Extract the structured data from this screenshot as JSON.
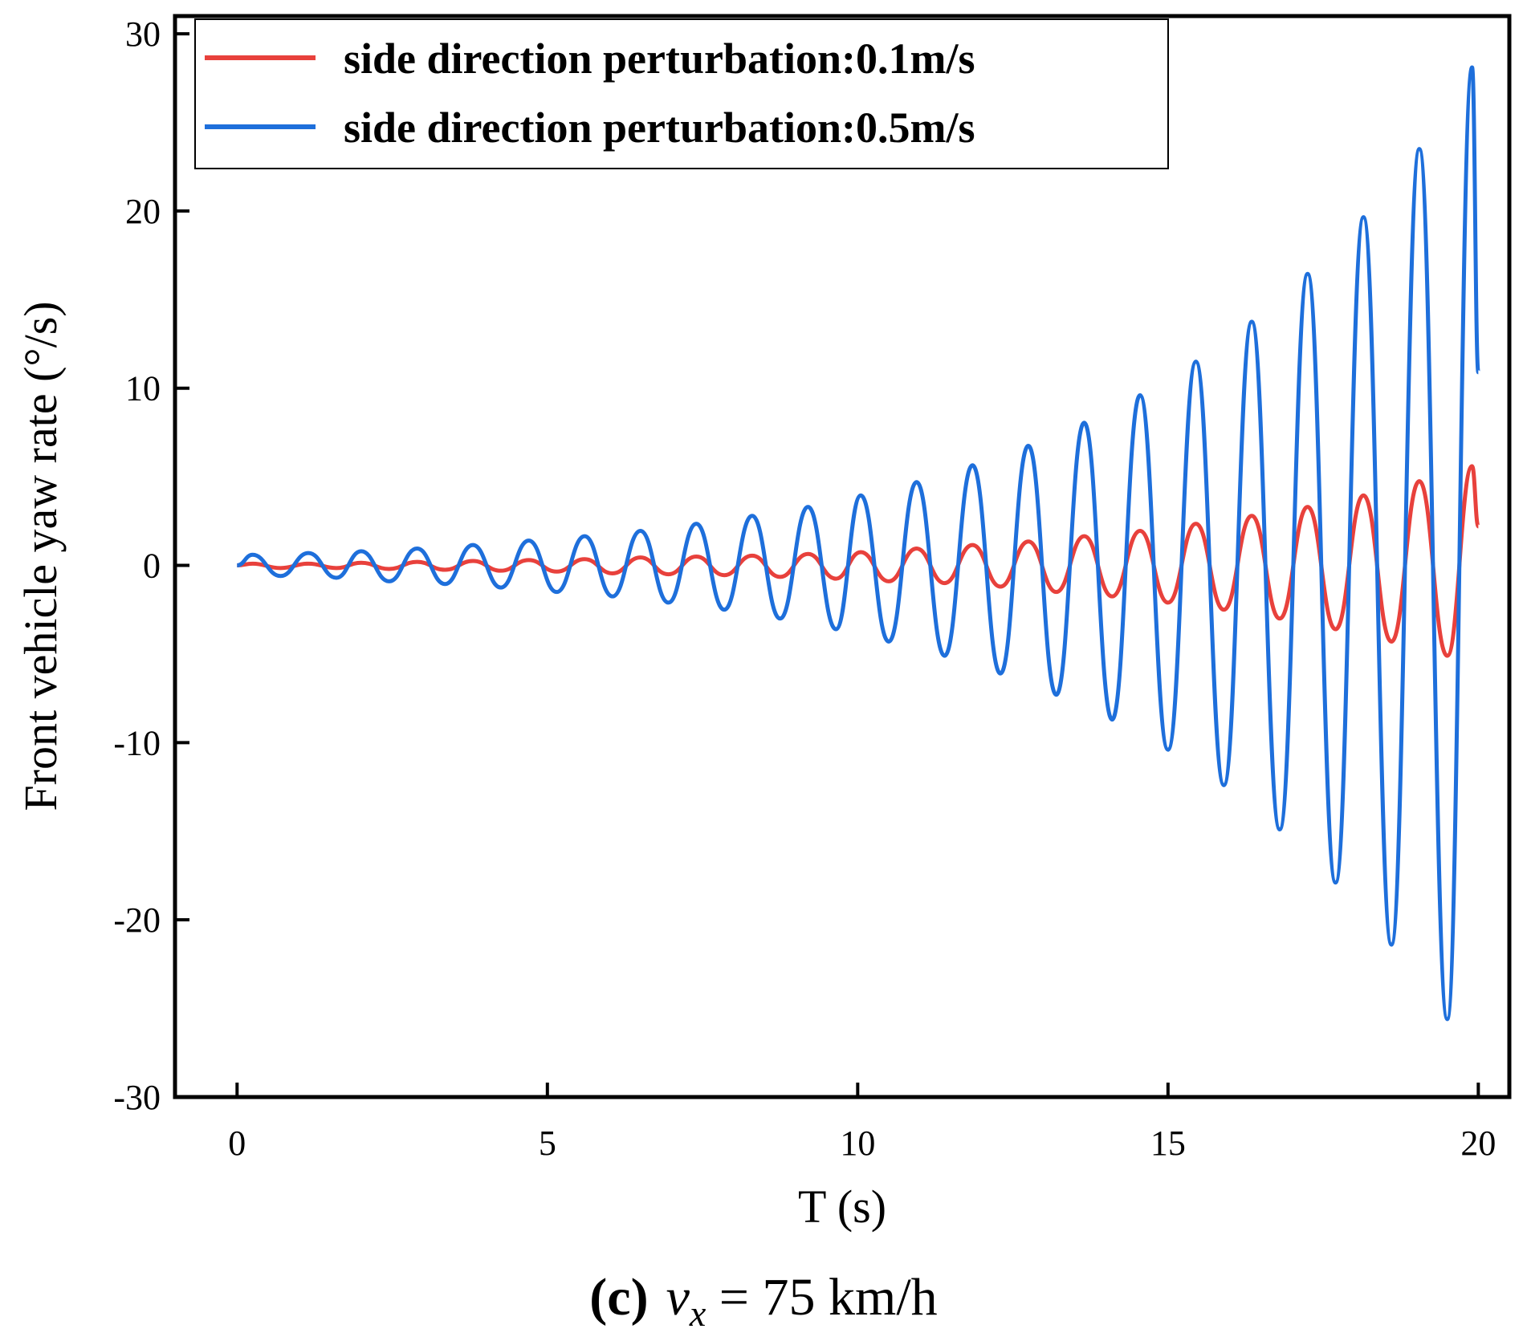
{
  "chart_data": {
    "type": "line",
    "title": "",
    "xlabel": "T (s)",
    "ylabel": "Front vehicle yaw rate (°/s)",
    "xlim": [
      -1,
      20.5
    ],
    "ylim": [
      -30,
      31
    ],
    "xticks": [
      0,
      5,
      10,
      15,
      20
    ],
    "xtick_labels": [
      "0",
      "5",
      "10",
      "15",
      "20"
    ],
    "yticks": [
      -30,
      -20,
      -10,
      0,
      10,
      20,
      30
    ],
    "ytick_labels": [
      "-30",
      "-20",
      "-10",
      "0",
      "10",
      "20",
      "30"
    ],
    "legend_position": "top-left",
    "grid": false,
    "series": [
      {
        "name": "side direction perturbation:0.1m/s",
        "color": "#e8413c",
        "peaks": [
          {
            "x": 0.25,
            "y": 0.1
          },
          {
            "x": 0.7,
            "y": -0.15
          },
          {
            "x": 1.15,
            "y": 0.1
          },
          {
            "x": 1.6,
            "y": -0.15
          },
          {
            "x": 2.0,
            "y": 0.15
          },
          {
            "x": 2.45,
            "y": -0.2
          },
          {
            "x": 2.9,
            "y": 0.2
          },
          {
            "x": 3.35,
            "y": -0.25
          },
          {
            "x": 3.8,
            "y": 0.25
          },
          {
            "x": 4.25,
            "y": -0.3
          },
          {
            "x": 4.7,
            "y": 0.3
          },
          {
            "x": 5.15,
            "y": -0.35
          },
          {
            "x": 5.6,
            "y": 0.35
          },
          {
            "x": 6.05,
            "y": -0.45
          },
          {
            "x": 6.5,
            "y": 0.45
          },
          {
            "x": 6.95,
            "y": -0.5
          },
          {
            "x": 7.4,
            "y": 0.5
          },
          {
            "x": 7.85,
            "y": -0.55
          },
          {
            "x": 8.3,
            "y": 0.55
          },
          {
            "x": 8.75,
            "y": -0.65
          },
          {
            "x": 9.2,
            "y": 0.65
          },
          {
            "x": 9.65,
            "y": -0.75
          },
          {
            "x": 10.05,
            "y": 0.75
          },
          {
            "x": 10.5,
            "y": -0.9
          },
          {
            "x": 10.95,
            "y": 0.95
          },
          {
            "x": 11.4,
            "y": -1.0
          },
          {
            "x": 11.85,
            "y": 1.15
          },
          {
            "x": 12.3,
            "y": -1.2
          },
          {
            "x": 12.75,
            "y": 1.35
          },
          {
            "x": 13.2,
            "y": -1.5
          },
          {
            "x": 13.65,
            "y": 1.65
          },
          {
            "x": 14.1,
            "y": -1.75
          },
          {
            "x": 14.55,
            "y": 1.95
          },
          {
            "x": 15.0,
            "y": -2.1
          },
          {
            "x": 15.45,
            "y": 2.35
          },
          {
            "x": 15.9,
            "y": -2.5
          },
          {
            "x": 16.35,
            "y": 2.8
          },
          {
            "x": 16.8,
            "y": -3.0
          },
          {
            "x": 17.25,
            "y": 3.3
          },
          {
            "x": 17.7,
            "y": -3.6
          },
          {
            "x": 18.15,
            "y": 3.95
          },
          {
            "x": 18.6,
            "y": -4.3
          },
          {
            "x": 19.05,
            "y": 4.75
          },
          {
            "x": 19.5,
            "y": -5.1
          },
          {
            "x": 19.9,
            "y": 5.6
          }
        ],
        "start": {
          "x": 0,
          "y": 0
        },
        "end": {
          "x": 20,
          "y": 2.2
        }
      },
      {
        "name": "side direction perturbation:0.5m/s",
        "color": "#1e6fdb",
        "peaks": [
          {
            "x": 0.25,
            "y": 0.6
          },
          {
            "x": 0.7,
            "y": -0.6
          },
          {
            "x": 1.15,
            "y": 0.7
          },
          {
            "x": 1.6,
            "y": -0.7
          },
          {
            "x": 2.0,
            "y": 0.8
          },
          {
            "x": 2.45,
            "y": -0.9
          },
          {
            "x": 2.9,
            "y": 0.95
          },
          {
            "x": 3.35,
            "y": -1.05
          },
          {
            "x": 3.8,
            "y": 1.15
          },
          {
            "x": 4.25,
            "y": -1.25
          },
          {
            "x": 4.7,
            "y": 1.4
          },
          {
            "x": 5.15,
            "y": -1.5
          },
          {
            "x": 5.6,
            "y": 1.65
          },
          {
            "x": 6.05,
            "y": -1.75
          },
          {
            "x": 6.5,
            "y": 1.95
          },
          {
            "x": 6.95,
            "y": -2.1
          },
          {
            "x": 7.4,
            "y": 2.35
          },
          {
            "x": 7.85,
            "y": -2.5
          },
          {
            "x": 8.3,
            "y": 2.8
          },
          {
            "x": 8.75,
            "y": -3.0
          },
          {
            "x": 9.2,
            "y": 3.3
          },
          {
            "x": 9.65,
            "y": -3.6
          },
          {
            "x": 10.05,
            "y": 3.95
          },
          {
            "x": 10.5,
            "y": -4.3
          },
          {
            "x": 10.95,
            "y": 4.7
          },
          {
            "x": 11.4,
            "y": -5.1
          },
          {
            "x": 11.85,
            "y": 5.65
          },
          {
            "x": 12.3,
            "y": -6.1
          },
          {
            "x": 12.75,
            "y": 6.75
          },
          {
            "x": 13.2,
            "y": -7.3
          },
          {
            "x": 13.65,
            "y": 8.05
          },
          {
            "x": 14.1,
            "y": -8.7
          },
          {
            "x": 14.55,
            "y": 9.6
          },
          {
            "x": 15.0,
            "y": -10.4
          },
          {
            "x": 15.45,
            "y": 11.5
          },
          {
            "x": 15.9,
            "y": -12.4
          },
          {
            "x": 16.35,
            "y": 13.75
          },
          {
            "x": 16.8,
            "y": -14.9
          },
          {
            "x": 17.25,
            "y": 16.45
          },
          {
            "x": 17.7,
            "y": -17.9
          },
          {
            "x": 18.15,
            "y": 19.65
          },
          {
            "x": 18.6,
            "y": -21.4
          },
          {
            "x": 19.05,
            "y": 23.5
          },
          {
            "x": 19.5,
            "y": -25.6
          },
          {
            "x": 19.9,
            "y": 28.1
          }
        ],
        "start": {
          "x": 0,
          "y": 0
        },
        "end": {
          "x": 20,
          "y": 10.9
        }
      }
    ]
  },
  "caption": {
    "label": "(c)",
    "variable": "v",
    "subscript": "x",
    "rest": " = 75 km/h"
  }
}
